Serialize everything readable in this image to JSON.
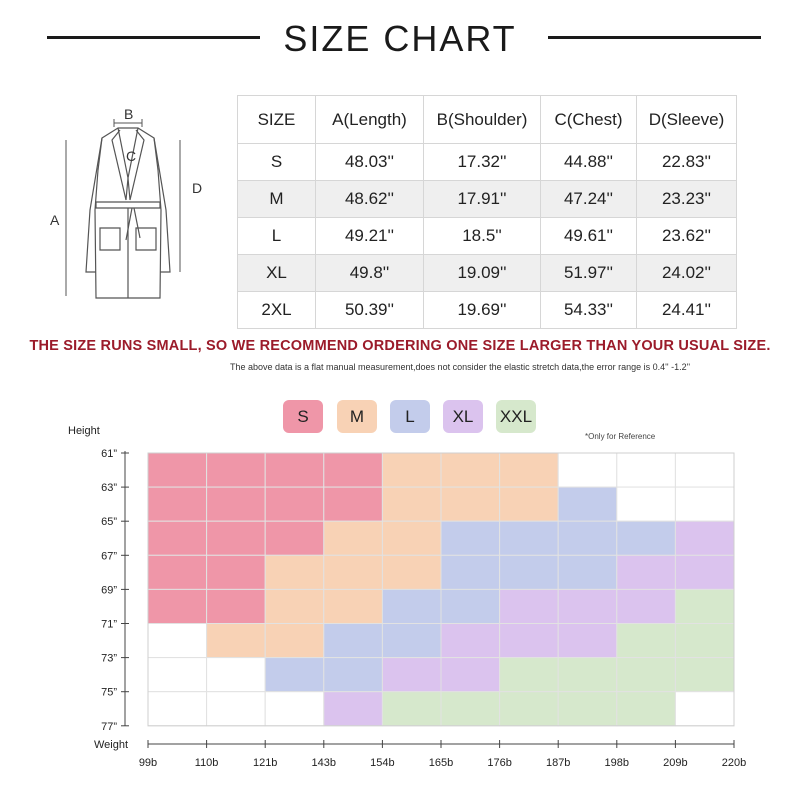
{
  "title": "SIZE CHART",
  "robe": {
    "labels": [
      "A",
      "B",
      "C",
      "D"
    ]
  },
  "table": {
    "headers": [
      "SIZE",
      "A(Length)",
      "B(Shoulder)",
      "C(Chest)",
      "D(Sleeve)"
    ],
    "rows": [
      [
        "S",
        "48.03''",
        "17.32''",
        "44.88''",
        "22.83''"
      ],
      [
        "M",
        "48.62''",
        "17.91''",
        "47.24''",
        "23.23''"
      ],
      [
        "L",
        "49.21''",
        "18.5''",
        "49.61''",
        "23.62''"
      ],
      [
        "XL",
        "49.8''",
        "19.09''",
        "51.97''",
        "24.02''"
      ],
      [
        "2XL",
        "50.39''",
        "19.69''",
        "54.33''",
        "24.41''"
      ]
    ]
  },
  "warning": "THE SIZE RUNS SMALL, SO WE RECOMMEND ORDERING ONE SIZE LARGER THAN YOUR USUAL SIZE.",
  "note": "The above data is a flat manual measurement,does not consider the elastic stretch data,the error range is 0.4'' -1.2''",
  "reference_note": "*Only for Reference",
  "colors": {
    "S": "#ef96a8",
    "M": "#f8d2b5",
    "L": "#c3cceb",
    "XL": "#dbc3ee",
    "XXL": "#d6e8cc",
    "warning": "#9b1b2a"
  },
  "chart_data": {
    "type": "heatmap",
    "xlabel": "Weight",
    "ylabel": "Height",
    "x_ticks": [
      "99b",
      "110b",
      "121b",
      "143b",
      "154b",
      "165b",
      "176b",
      "187b",
      "198b",
      "209b",
      "220b"
    ],
    "y_ticks": [
      "61”",
      "63”",
      "65”",
      "67”",
      "69”",
      "71”",
      "73”",
      "75”",
      "77”"
    ],
    "legend": [
      "S",
      "M",
      "L",
      "XL",
      "XXL"
    ],
    "grid": [
      [
        "S",
        "S",
        "S",
        "S",
        "M",
        "M",
        "M",
        "",
        "",
        ""
      ],
      [
        "S",
        "S",
        "S",
        "S",
        "M",
        "M",
        "M",
        "L",
        "",
        ""
      ],
      [
        "S",
        "S",
        "S",
        "M",
        "M",
        "L",
        "L",
        "L",
        "L",
        "XL"
      ],
      [
        "S",
        "S",
        "M",
        "M",
        "M",
        "L",
        "L",
        "L",
        "XL",
        "XL"
      ],
      [
        "S",
        "S",
        "M",
        "M",
        "L",
        "L",
        "XL",
        "XL",
        "XL",
        "XXL"
      ],
      [
        "",
        "M",
        "M",
        "L",
        "L",
        "XL",
        "XL",
        "XL",
        "XXL",
        "XXL"
      ],
      [
        "",
        "",
        "L",
        "L",
        "XL",
        "XL",
        "XXL",
        "XXL",
        "XXL",
        "XXL"
      ],
      [
        "",
        "",
        "",
        "XL",
        "XXL",
        "XXL",
        "XXL",
        "XXL",
        "XXL",
        ""
      ]
    ]
  }
}
